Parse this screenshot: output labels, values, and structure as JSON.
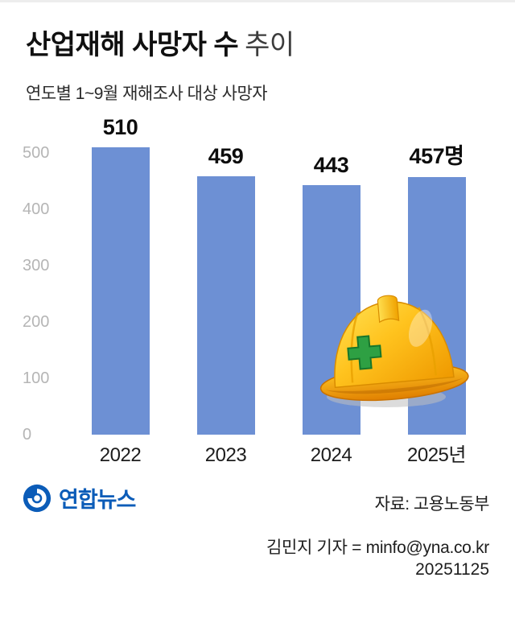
{
  "header": {
    "title_main": "산업재해 사망자 수",
    "title_suffix": "추이",
    "subtitle": "연도별 1~9월 재해조사 대상 사망자"
  },
  "chart_data": {
    "type": "bar",
    "title": "산업재해 사망자 수 추이",
    "subtitle": "연도별 1~9월 재해조사 대상 사망자",
    "categories": [
      "2022",
      "2023",
      "2024",
      "2025년"
    ],
    "values": [
      510,
      459,
      443,
      457
    ],
    "value_labels": [
      "510",
      "459",
      "443",
      "457명"
    ],
    "xlabel": "",
    "ylabel": "",
    "ylim": [
      0,
      500
    ],
    "yticks": [
      0,
      100,
      200,
      300,
      400,
      500
    ],
    "grid": false,
    "legend_position": "none",
    "bar_color": "#6d90d4",
    "tick_color": "#b5b5b5",
    "value_label_color": "#0d0d0d"
  },
  "footer": {
    "agency": "연합뉴스",
    "source": "자료: 고용노동부",
    "byline": "김민지 기자 = minfo@yna.co.kr",
    "date": "20251125"
  },
  "icons": {
    "helmet": "safety-helmet-icon",
    "logo": "yonhap-news-logo"
  },
  "colors": {
    "accent_blue": "#6d90d4",
    "logo_blue": "#0b5cb8",
    "helmet_yellow": "#ffc31e",
    "cross_green": "#2ea043"
  }
}
